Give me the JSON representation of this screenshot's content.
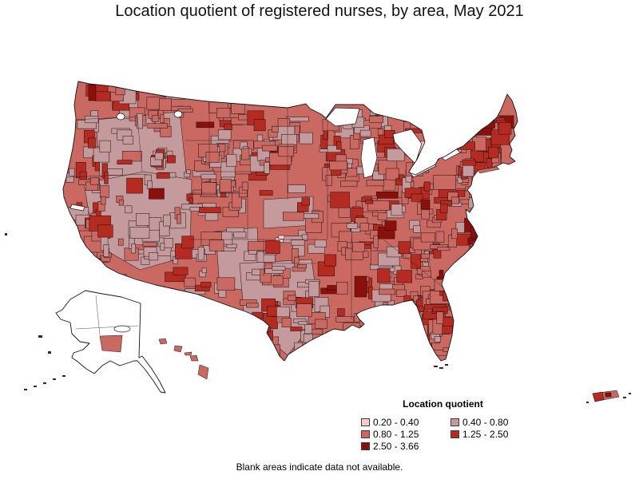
{
  "title": "Location quotient of registered nurses, by area, May 2021",
  "note": "Blank areas indicate data not available.",
  "legend": {
    "title": "Location quotient",
    "items": [
      {
        "label": "0.20 - 0.40",
        "color": "#f9c9cf",
        "col": 0,
        "row": 0
      },
      {
        "label": "0.40 - 0.80",
        "color": "#c49a9c",
        "col": 1,
        "row": 0
      },
      {
        "label": "0.80 - 1.25",
        "color": "#ca6862",
        "col": 0,
        "row": 1
      },
      {
        "label": "1.25 - 2.50",
        "color": "#b52a21",
        "col": 1,
        "row": 1
      },
      {
        "label": "2.50 - 3.66",
        "color": "#8b100b",
        "col": 0,
        "row": 2
      }
    ]
  },
  "map": {
    "base_color": "#ca6862",
    "secondary_color": "#c49a9c",
    "boundary_color": "#1c1010",
    "water_color": "#ffffff",
    "regions": [
      "conterminous-us",
      "alaska",
      "hawaii",
      "puerto-rico"
    ]
  },
  "chart_data": {
    "type": "choropleth",
    "title": "Location quotient of registered nurses, by area, May 2021",
    "legend_title": "Location quotient",
    "classes": [
      {
        "range": "0.20 - 0.40",
        "min": 0.2,
        "max": 0.4,
        "color": "#f9c9cf"
      },
      {
        "range": "0.40 - 0.80",
        "min": 0.4,
        "max": 0.8,
        "color": "#c49a9c"
      },
      {
        "range": "0.80 - 1.25",
        "min": 0.8,
        "max": 1.25,
        "color": "#ca6862"
      },
      {
        "range": "1.25 - 2.50",
        "min": 1.25,
        "max": 2.5,
        "color": "#b52a21"
      },
      {
        "range": "2.50 - 3.66",
        "min": 2.5,
        "max": 3.66,
        "color": "#8b100b"
      }
    ],
    "no_data_note": "Blank areas indicate data not available."
  }
}
